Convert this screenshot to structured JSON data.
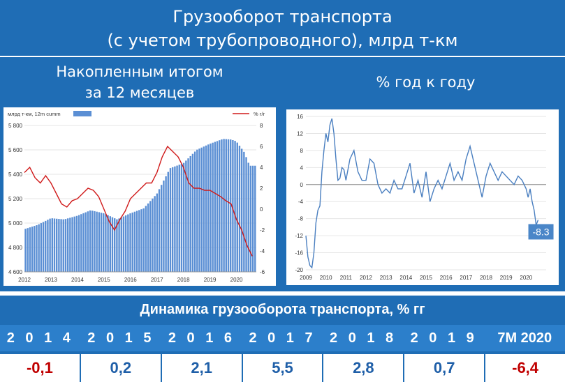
{
  "header": {
    "title_line1": "Грузооборот транспорта",
    "title_line2": "(с учетом трубопроводного), млрд т-км"
  },
  "left_panel": {
    "title_line1": "Накопленным итогом",
    "title_line2": "за 12 месяцев"
  },
  "right_panel": {
    "title": "% год к году"
  },
  "table": {
    "title": "Динамика грузооборота транспорта, % гг",
    "headers": [
      "2 0 1 4",
      "2 0 1 5",
      "2 0 1 6",
      "2 0 1 7",
      "2 0 1 8",
      "2 0 1 9",
      "7М 2020"
    ],
    "values": [
      "-0,1",
      "0,2",
      "2,1",
      "5,5",
      "2,8",
      "0,7",
      "-6,4"
    ],
    "value_colors": [
      "#c00000",
      "#1f5fa8",
      "#1f5fa8",
      "#1f5fa8",
      "#1f5fa8",
      "#1f5fa8",
      "#c00000"
    ]
  },
  "colors": {
    "banner_bg": "#1f6db5",
    "bar_fill": "#5b8fd4",
    "yoy_line": "#d01a1a",
    "line_blue": "#4a7fc0",
    "negative": "#c00000",
    "positive": "#1f5fa8"
  },
  "chart_data": [
    {
      "type": "bar",
      "legend": [
        {
          "label": "млрд т-км, 12m cumm",
          "kind": "bar"
        },
        {
          "label": "% г/г",
          "kind": "line"
        }
      ],
      "x_labels": [
        "2012",
        "2013",
        "2014",
        "2015",
        "2016",
        "2017",
        "2018",
        "2019",
        "2020"
      ],
      "y_ticks": [
        "4 600",
        "4 800",
        "5 000",
        "5 200",
        "5 400",
        "5 600",
        "5 800"
      ],
      "y2_ticks": [
        "-6",
        "-4",
        "-2",
        "0",
        "2",
        "4",
        "6",
        "8"
      ],
      "ylim": [
        4600,
        5800
      ],
      "y2lim": [
        -6,
        8
      ],
      "x_range": [
        2012,
        2020.75
      ],
      "series": [
        {
          "kind": "bar",
          "x": [
            2012.0,
            2012.5,
            2013.0,
            2013.5,
            2014.0,
            2014.5,
            2015.0,
            2015.5,
            2016.0,
            2016.5,
            2017.0,
            2017.5,
            2018.0,
            2018.5,
            2019.0,
            2019.5,
            2019.8,
            2020.0,
            2020.3,
            2020.5
          ],
          "values": [
            4950,
            4985,
            5040,
            5030,
            5060,
            5105,
            5080,
            5030,
            5080,
            5120,
            5240,
            5450,
            5490,
            5600,
            5650,
            5690,
            5685,
            5670,
            5580,
            5470
          ]
        },
        {
          "kind": "line",
          "x": [
            2012.0,
            2012.2,
            2012.4,
            2012.6,
            2012.8,
            2013.0,
            2013.2,
            2013.4,
            2013.6,
            2013.8,
            2014.0,
            2014.2,
            2014.4,
            2014.6,
            2014.8,
            2015.0,
            2015.2,
            2015.4,
            2015.6,
            2015.8,
            2016.0,
            2016.2,
            2016.4,
            2016.6,
            2016.8,
            2017.0,
            2017.2,
            2017.4,
            2017.6,
            2017.8,
            2018.0,
            2018.2,
            2018.4,
            2018.6,
            2018.8,
            2019.0,
            2019.2,
            2019.4,
            2019.6,
            2019.8,
            2020.0,
            2020.2,
            2020.4,
            2020.6
          ],
          "values": [
            3.5,
            4.0,
            3.0,
            2.5,
            3.2,
            2.5,
            1.5,
            0.5,
            0.2,
            0.8,
            1.0,
            1.5,
            2.0,
            1.8,
            1.2,
            0.0,
            -1.2,
            -2.0,
            -1.0,
            -0.2,
            1.0,
            1.5,
            2.0,
            2.5,
            2.5,
            3.5,
            5.0,
            6.0,
            5.5,
            5.0,
            4.0,
            2.5,
            2.0,
            2.0,
            1.8,
            1.8,
            1.5,
            1.2,
            0.8,
            0.5,
            -1.0,
            -2.0,
            -3.5,
            -4.5
          ]
        }
      ]
    },
    {
      "type": "line",
      "x_labels": [
        "2009",
        "2010",
        "2011",
        "2012",
        "2013",
        "2014",
        "2015",
        "2016",
        "2017",
        "2018",
        "2019",
        "2020"
      ],
      "y_ticks": [
        "-20",
        "-16",
        "-12",
        "-8",
        "-4",
        "0",
        "4",
        "8",
        "12",
        "16"
      ],
      "ylim": [
        -20,
        16
      ],
      "x_range": [
        2009,
        2021
      ],
      "annotation": "-8.3",
      "series": [
        {
          "kind": "line",
          "x": [
            2009.0,
            2009.1,
            2009.2,
            2009.3,
            2009.4,
            2009.5,
            2009.6,
            2009.7,
            2009.8,
            2009.9,
            2010.0,
            2010.1,
            2010.2,
            2010.3,
            2010.4,
            2010.5,
            2010.6,
            2010.7,
            2010.8,
            2010.9,
            2011.0,
            2011.2,
            2011.4,
            2011.6,
            2011.8,
            2012.0,
            2012.2,
            2012.4,
            2012.6,
            2012.8,
            2013.0,
            2013.2,
            2013.4,
            2013.6,
            2013.8,
            2014.0,
            2014.2,
            2014.4,
            2014.6,
            2014.8,
            2015.0,
            2015.2,
            2015.4,
            2015.6,
            2015.8,
            2016.0,
            2016.2,
            2016.4,
            2016.6,
            2016.8,
            2017.0,
            2017.2,
            2017.4,
            2017.6,
            2017.8,
            2018.0,
            2018.2,
            2018.4,
            2018.6,
            2018.8,
            2019.0,
            2019.2,
            2019.4,
            2019.6,
            2019.8,
            2020.0,
            2020.1,
            2020.2,
            2020.3,
            2020.4,
            2020.5,
            2020.6
          ],
          "values": [
            -12,
            -17,
            -19,
            -19.5,
            -16,
            -9,
            -6,
            -5,
            3,
            8,
            12,
            10,
            14,
            15.5,
            12,
            6,
            1,
            1.5,
            4,
            3.5,
            1,
            6,
            8,
            3,
            1,
            1,
            6,
            5,
            0,
            -2,
            -1,
            -2,
            1,
            -1,
            -1,
            2,
            5,
            -2,
            1,
            -3,
            3,
            -4,
            -1,
            1,
            -1,
            2,
            5,
            1,
            3,
            1,
            6,
            9,
            5,
            1,
            -3,
            2,
            5,
            3,
            1,
            3,
            2,
            1,
            0,
            2,
            1,
            -1,
            -3,
            -1,
            -4,
            -6,
            -9.5,
            -8.3
          ]
        }
      ]
    }
  ]
}
